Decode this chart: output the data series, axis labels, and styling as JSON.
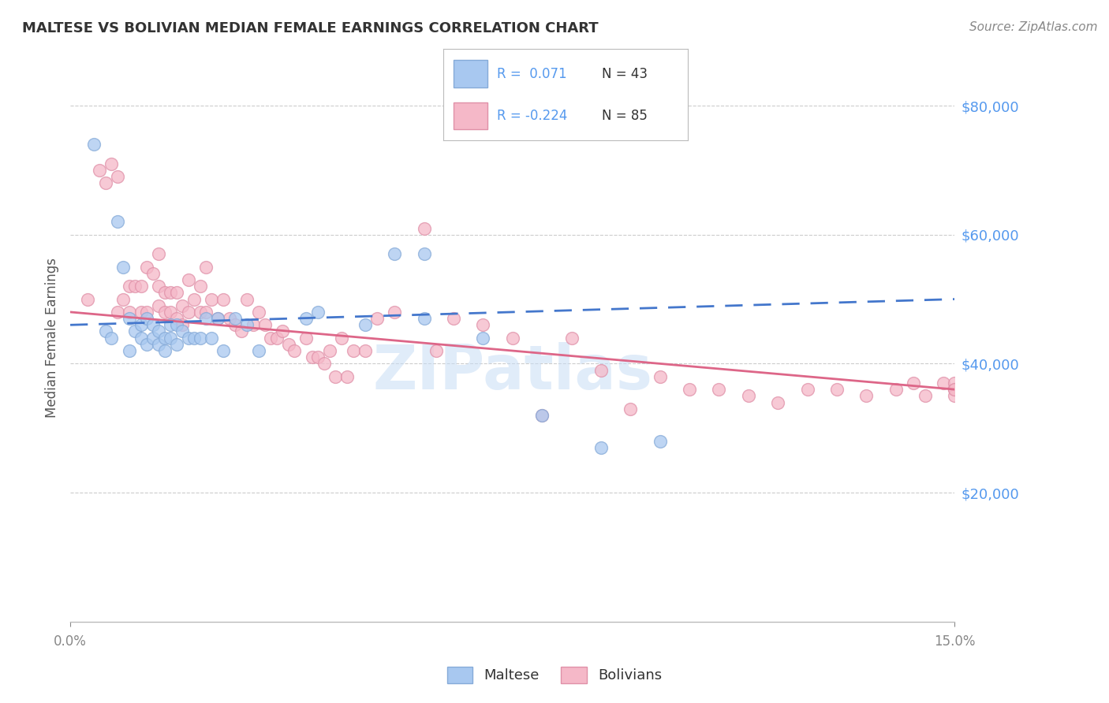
{
  "title": "MALTESE VS BOLIVIAN MEDIAN FEMALE EARNINGS CORRELATION CHART",
  "source": "Source: ZipAtlas.com",
  "ylabel_label": "Median Female Earnings",
  "ylabel_ticks": [
    "$20,000",
    "$40,000",
    "$60,000",
    "$80,000"
  ],
  "ylabel_values": [
    20000,
    40000,
    60000,
    80000
  ],
  "xmin": 0.0,
  "xmax": 0.15,
  "ymin": 0,
  "ymax": 88000,
  "maltese_R": 0.071,
  "maltese_N": 43,
  "bolivian_R": -0.224,
  "bolivian_N": 85,
  "maltese_color": "#a8c8f0",
  "bolivian_color": "#f5b8c8",
  "maltese_edge_color": "#85aad8",
  "bolivian_edge_color": "#e090a8",
  "trend_maltese_color": "#4477cc",
  "trend_bolivian_color": "#dd6688",
  "maltese_x": [
    0.004,
    0.006,
    0.007,
    0.008,
    0.009,
    0.01,
    0.01,
    0.011,
    0.012,
    0.012,
    0.013,
    0.013,
    0.014,
    0.014,
    0.015,
    0.015,
    0.016,
    0.016,
    0.017,
    0.017,
    0.018,
    0.018,
    0.019,
    0.02,
    0.021,
    0.022,
    0.023,
    0.024,
    0.025,
    0.026,
    0.028,
    0.03,
    0.032,
    0.04,
    0.042,
    0.05,
    0.055,
    0.06,
    0.06,
    0.07,
    0.08,
    0.09,
    0.1
  ],
  "maltese_y": [
    74000,
    45000,
    44000,
    62000,
    55000,
    47000,
    42000,
    45000,
    46000,
    44000,
    47000,
    43000,
    46000,
    44000,
    45000,
    43000,
    44000,
    42000,
    46000,
    44000,
    46000,
    43000,
    45000,
    44000,
    44000,
    44000,
    47000,
    44000,
    47000,
    42000,
    47000,
    46000,
    42000,
    47000,
    48000,
    46000,
    57000,
    57000,
    47000,
    44000,
    32000,
    27000,
    28000
  ],
  "bolivian_x": [
    0.003,
    0.005,
    0.006,
    0.007,
    0.008,
    0.008,
    0.009,
    0.01,
    0.01,
    0.011,
    0.012,
    0.012,
    0.013,
    0.013,
    0.014,
    0.015,
    0.015,
    0.015,
    0.016,
    0.016,
    0.017,
    0.017,
    0.018,
    0.018,
    0.019,
    0.019,
    0.02,
    0.02,
    0.021,
    0.022,
    0.022,
    0.023,
    0.023,
    0.024,
    0.025,
    0.026,
    0.027,
    0.028,
    0.029,
    0.03,
    0.031,
    0.032,
    0.033,
    0.034,
    0.035,
    0.036,
    0.037,
    0.038,
    0.04,
    0.041,
    0.042,
    0.043,
    0.044,
    0.045,
    0.046,
    0.047,
    0.048,
    0.05,
    0.052,
    0.055,
    0.06,
    0.062,
    0.065,
    0.07,
    0.075,
    0.08,
    0.085,
    0.09,
    0.095,
    0.1,
    0.105,
    0.11,
    0.115,
    0.12,
    0.125,
    0.13,
    0.135,
    0.14,
    0.143,
    0.145,
    0.148,
    0.15,
    0.15,
    0.15,
    0.15
  ],
  "bolivian_y": [
    50000,
    70000,
    68000,
    71000,
    69000,
    48000,
    50000,
    52000,
    48000,
    52000,
    52000,
    48000,
    55000,
    48000,
    54000,
    57000,
    52000,
    49000,
    51000,
    48000,
    51000,
    48000,
    51000,
    47000,
    49000,
    46000,
    53000,
    48000,
    50000,
    52000,
    48000,
    55000,
    48000,
    50000,
    47000,
    50000,
    47000,
    46000,
    45000,
    50000,
    46000,
    48000,
    46000,
    44000,
    44000,
    45000,
    43000,
    42000,
    44000,
    41000,
    41000,
    40000,
    42000,
    38000,
    44000,
    38000,
    42000,
    42000,
    47000,
    48000,
    61000,
    42000,
    47000,
    46000,
    44000,
    32000,
    44000,
    39000,
    33000,
    38000,
    36000,
    36000,
    35000,
    34000,
    36000,
    36000,
    35000,
    36000,
    37000,
    35000,
    37000,
    36000,
    37000,
    35000,
    36000
  ],
  "watermark": "ZIPatlas",
  "legend_maltese": "Maltese",
  "legend_bolivian": "Bolivians"
}
